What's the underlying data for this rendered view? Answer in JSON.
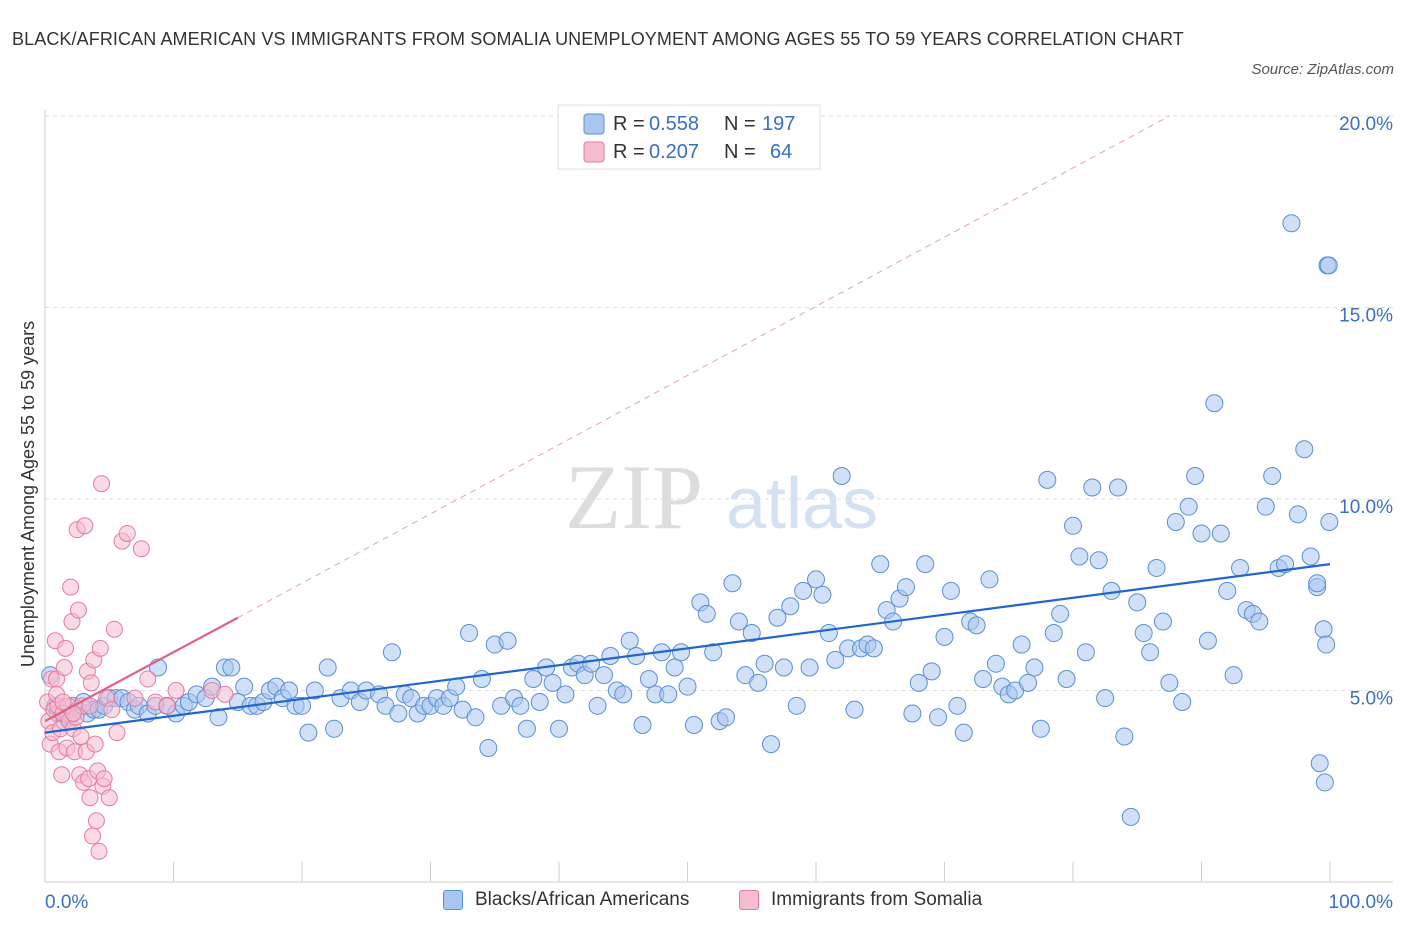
{
  "title": "BLACK/AFRICAN AMERICAN VS IMMIGRANTS FROM SOMALIA UNEMPLOYMENT AMONG AGES 55 TO 59 YEARS CORRELATION CHART",
  "source": "Source: ZipAtlas.com",
  "watermark": {
    "zip": "ZIP",
    "atlas": "atlas"
  },
  "colors": {
    "blue": "#5a8fd8",
    "blue_fill": "#a9c6ef",
    "blue_line": "#2266cc",
    "pink": "#e87aa0",
    "pink_fill": "#f6bcd0",
    "pink_line": "#e0608a",
    "axis_text": "#3a6fc4"
  },
  "legend_top": [
    {
      "r_label": "R = ",
      "r_value": "0.558",
      "n_label": "N = ",
      "n_value": "197"
    },
    {
      "r_label": "R = ",
      "r_value": "0.207",
      "n_label": "N = ",
      "n_value": "64"
    }
  ],
  "chart_data": {
    "type": "scatter",
    "title": "BLACK/AFRICAN AMERICAN VS IMMIGRANTS FROM SOMALIA UNEMPLOYMENT AMONG AGES 55 TO 59 YEARS CORRELATION CHART",
    "xlabel": "",
    "ylabel": "Unemployment Among Ages 55 to 59 years",
    "xlim": [
      0,
      100
    ],
    "ylim": [
      0,
      20.5
    ],
    "x_tick_labels": [
      "0.0%",
      "100.0%"
    ],
    "y_ticks": [
      5,
      10,
      15,
      20
    ],
    "y_tick_labels": [
      "5.0%",
      "10.0%",
      "15.0%",
      "20.0%"
    ],
    "grid": "horizontal dashed",
    "legend_position": "top-center and bottom",
    "series": [
      {
        "name": "Blacks/African Americans",
        "color": "#5a8fd8",
        "R": 0.558,
        "N": 197,
        "trend": {
          "x": [
            0,
            100
          ],
          "y": [
            3.9,
            8.3
          ]
        },
        "points": [
          [
            0.4,
            5.4
          ],
          [
            0.8,
            4.6
          ],
          [
            1.0,
            4.4
          ],
          [
            1.5,
            4.2
          ],
          [
            1.8,
            4.3
          ],
          [
            2.2,
            4.6
          ],
          [
            2.6,
            4.5
          ],
          [
            3.0,
            4.7
          ],
          [
            3.3,
            4.4
          ],
          [
            3.8,
            4.5
          ],
          [
            4.2,
            4.5
          ],
          [
            4.6,
            4.6
          ],
          [
            5.0,
            4.8
          ],
          [
            5.5,
            4.8
          ],
          [
            6.0,
            4.8
          ],
          [
            6.5,
            4.7
          ],
          [
            7.0,
            4.5
          ],
          [
            7.3,
            4.6
          ],
          [
            8.0,
            4.4
          ],
          [
            8.6,
            4.6
          ],
          [
            8.8,
            5.6
          ],
          [
            9.5,
            4.6
          ],
          [
            10.2,
            4.4
          ],
          [
            10.8,
            4.6
          ],
          [
            11.2,
            4.7
          ],
          [
            11.8,
            4.9
          ],
          [
            12.5,
            4.8
          ],
          [
            13.0,
            5.1
          ],
          [
            13.5,
            4.3
          ],
          [
            14.0,
            5.6
          ],
          [
            14.5,
            5.6
          ],
          [
            15.0,
            4.7
          ],
          [
            15.5,
            5.1
          ],
          [
            16.0,
            4.6
          ],
          [
            16.5,
            4.6
          ],
          [
            17.0,
            4.7
          ],
          [
            17.5,
            5.0
          ],
          [
            18.0,
            5.1
          ],
          [
            18.5,
            4.8
          ],
          [
            19.0,
            5.0
          ],
          [
            19.5,
            4.6
          ],
          [
            20.0,
            4.6
          ],
          [
            20.5,
            3.9
          ],
          [
            21.0,
            5.0
          ],
          [
            22.0,
            5.6
          ],
          [
            22.5,
            4.0
          ],
          [
            23.0,
            4.8
          ],
          [
            23.8,
            5.0
          ],
          [
            24.5,
            4.7
          ],
          [
            25.0,
            5.0
          ],
          [
            26.0,
            4.9
          ],
          [
            26.5,
            4.6
          ],
          [
            27.0,
            6.0
          ],
          [
            27.5,
            4.4
          ],
          [
            28.0,
            4.9
          ],
          [
            28.5,
            4.8
          ],
          [
            29.0,
            4.4
          ],
          [
            29.5,
            4.6
          ],
          [
            30.0,
            4.6
          ],
          [
            30.5,
            4.8
          ],
          [
            31.0,
            4.6
          ],
          [
            31.5,
            4.8
          ],
          [
            32.0,
            5.1
          ],
          [
            32.5,
            4.5
          ],
          [
            33.0,
            6.5
          ],
          [
            33.5,
            4.3
          ],
          [
            34.0,
            5.3
          ],
          [
            34.5,
            3.5
          ],
          [
            35.0,
            6.2
          ],
          [
            35.5,
            4.6
          ],
          [
            36.0,
            6.3
          ],
          [
            36.5,
            4.8
          ],
          [
            37.0,
            4.6
          ],
          [
            37.5,
            4.0
          ],
          [
            38.0,
            5.3
          ],
          [
            38.5,
            4.7
          ],
          [
            39.0,
            5.6
          ],
          [
            39.5,
            5.2
          ],
          [
            40.0,
            4.0
          ],
          [
            40.5,
            4.9
          ],
          [
            41.0,
            5.6
          ],
          [
            41.5,
            5.7
          ],
          [
            42.0,
            5.4
          ],
          [
            42.5,
            5.7
          ],
          [
            43.0,
            4.6
          ],
          [
            43.5,
            5.4
          ],
          [
            44.0,
            5.9
          ],
          [
            44.5,
            5.0
          ],
          [
            45.0,
            4.9
          ],
          [
            45.5,
            6.3
          ],
          [
            46.0,
            5.9
          ],
          [
            46.5,
            4.1
          ],
          [
            47.0,
            5.3
          ],
          [
            47.5,
            4.9
          ],
          [
            48.0,
            6.0
          ],
          [
            48.5,
            4.9
          ],
          [
            49.0,
            5.6
          ],
          [
            49.5,
            6.0
          ],
          [
            50.0,
            5.1
          ],
          [
            50.5,
            4.1
          ],
          [
            51.0,
            7.3
          ],
          [
            51.5,
            7.0
          ],
          [
            52.0,
            6.0
          ],
          [
            52.5,
            4.2
          ],
          [
            53.0,
            4.3
          ],
          [
            53.5,
            7.8
          ],
          [
            54.0,
            6.8
          ],
          [
            54.5,
            5.4
          ],
          [
            55.0,
            6.5
          ],
          [
            55.5,
            5.2
          ],
          [
            56.0,
            5.7
          ],
          [
            56.5,
            3.6
          ],
          [
            57.0,
            6.9
          ],
          [
            57.5,
            5.6
          ],
          [
            58.0,
            7.2
          ],
          [
            58.5,
            4.6
          ],
          [
            59.0,
            7.6
          ],
          [
            59.5,
            5.6
          ],
          [
            60.0,
            7.9
          ],
          [
            60.5,
            7.5
          ],
          [
            61.0,
            6.5
          ],
          [
            61.5,
            5.8
          ],
          [
            62.0,
            10.6
          ],
          [
            62.5,
            6.1
          ],
          [
            63.0,
            4.5
          ],
          [
            63.5,
            6.1
          ],
          [
            64.0,
            6.2
          ],
          [
            64.5,
            6.1
          ],
          [
            65.0,
            8.3
          ],
          [
            65.5,
            7.1
          ],
          [
            66.0,
            6.8
          ],
          [
            66.5,
            7.4
          ],
          [
            67.0,
            7.7
          ],
          [
            67.5,
            4.4
          ],
          [
            68.0,
            5.2
          ],
          [
            68.5,
            8.3
          ],
          [
            69.0,
            5.5
          ],
          [
            69.5,
            4.3
          ],
          [
            70.0,
            6.4
          ],
          [
            70.5,
            7.6
          ],
          [
            71.0,
            4.6
          ],
          [
            71.5,
            3.9
          ],
          [
            72.0,
            6.8
          ],
          [
            72.5,
            6.7
          ],
          [
            73.0,
            5.3
          ],
          [
            73.5,
            7.9
          ],
          [
            74.0,
            5.7
          ],
          [
            74.5,
            5.1
          ],
          [
            75.0,
            4.9
          ],
          [
            75.5,
            5.0
          ],
          [
            76.0,
            6.2
          ],
          [
            76.5,
            5.2
          ],
          [
            77.0,
            5.6
          ],
          [
            77.5,
            4.0
          ],
          [
            78.0,
            10.5
          ],
          [
            78.5,
            6.5
          ],
          [
            79.0,
            7.0
          ],
          [
            79.5,
            5.3
          ],
          [
            80.0,
            9.3
          ],
          [
            80.5,
            8.5
          ],
          [
            81.0,
            6.0
          ],
          [
            81.5,
            10.3
          ],
          [
            82.0,
            8.4
          ],
          [
            82.5,
            4.8
          ],
          [
            83.0,
            7.6
          ],
          [
            83.5,
            10.3
          ],
          [
            84.0,
            3.8
          ],
          [
            84.5,
            1.7
          ],
          [
            85.0,
            7.3
          ],
          [
            85.5,
            6.5
          ],
          [
            86.0,
            6.0
          ],
          [
            86.5,
            8.2
          ],
          [
            87.0,
            6.8
          ],
          [
            87.5,
            5.2
          ],
          [
            88.0,
            9.4
          ],
          [
            88.5,
            4.7
          ],
          [
            89.0,
            9.8
          ],
          [
            89.5,
            10.6
          ],
          [
            90.0,
            9.1
          ],
          [
            90.5,
            6.3
          ],
          [
            91.0,
            12.5
          ],
          [
            91.5,
            9.1
          ],
          [
            92.0,
            7.6
          ],
          [
            92.5,
            5.4
          ],
          [
            93.0,
            8.2
          ],
          [
            93.5,
            7.1
          ],
          [
            94.0,
            7.0
          ],
          [
            94.5,
            6.8
          ],
          [
            95.0,
            9.8
          ],
          [
            95.5,
            10.6
          ],
          [
            96.0,
            8.2
          ],
          [
            96.5,
            8.3
          ],
          [
            97.0,
            17.2
          ],
          [
            97.5,
            9.6
          ],
          [
            98.0,
            11.3
          ],
          [
            98.5,
            8.5
          ],
          [
            99.0,
            7.7
          ],
          [
            99.5,
            6.6
          ],
          [
            99.7,
            6.2
          ],
          [
            99.8,
            16.1
          ],
          [
            99.9,
            16.1
          ],
          [
            99.95,
            9.4
          ],
          [
            99.0,
            7.8
          ],
          [
            99.2,
            3.1
          ],
          [
            99.6,
            2.6
          ]
        ]
      },
      {
        "name": "Immigrants from Somalia",
        "color": "#e87aa0",
        "R": 0.207,
        "N": 64,
        "trend": {
          "x": [
            0,
            15
          ],
          "y": [
            4.2,
            6.9
          ]
        },
        "points": [
          [
            0.2,
            4.7
          ],
          [
            0.3,
            4.2
          ],
          [
            0.4,
            3.6
          ],
          [
            0.5,
            5.3
          ],
          [
            0.6,
            3.9
          ],
          [
            0.7,
            4.5
          ],
          [
            0.8,
            6.3
          ],
          [
            0.9,
            5.3
          ],
          [
            1.0,
            4.6
          ],
          [
            1.1,
            3.4
          ],
          [
            1.2,
            4.0
          ],
          [
            1.3,
            2.8
          ],
          [
            1.4,
            4.4
          ],
          [
            1.5,
            5.6
          ],
          [
            1.6,
            6.1
          ],
          [
            1.7,
            3.5
          ],
          [
            1.8,
            4.6
          ],
          [
            1.9,
            4.2
          ],
          [
            2.0,
            7.7
          ],
          [
            2.1,
            6.8
          ],
          [
            2.2,
            4.0
          ],
          [
            2.3,
            3.4
          ],
          [
            2.4,
            4.3
          ],
          [
            2.5,
            9.2
          ],
          [
            2.6,
            7.1
          ],
          [
            2.7,
            2.8
          ],
          [
            2.8,
            3.8
          ],
          [
            2.9,
            4.6
          ],
          [
            3.0,
            2.6
          ],
          [
            3.1,
            9.3
          ],
          [
            3.2,
            3.4
          ],
          [
            3.3,
            5.5
          ],
          [
            3.4,
            2.7
          ],
          [
            3.5,
            2.2
          ],
          [
            3.6,
            5.2
          ],
          [
            3.7,
            1.2
          ],
          [
            3.8,
            5.8
          ],
          [
            3.9,
            3.6
          ],
          [
            4.0,
            1.6
          ],
          [
            4.1,
            2.9
          ],
          [
            4.2,
            0.8
          ],
          [
            4.3,
            6.1
          ],
          [
            4.4,
            10.4
          ],
          [
            4.5,
            2.5
          ],
          [
            4.6,
            2.7
          ],
          [
            4.8,
            4.8
          ],
          [
            5.0,
            2.2
          ],
          [
            5.2,
            4.5
          ],
          [
            5.4,
            6.6
          ],
          [
            5.6,
            3.9
          ],
          [
            6.0,
            8.9
          ],
          [
            6.4,
            9.1
          ],
          [
            7.0,
            4.8
          ],
          [
            7.5,
            8.7
          ],
          [
            8.0,
            5.3
          ],
          [
            8.6,
            4.7
          ],
          [
            9.5,
            4.6
          ],
          [
            10.2,
            5.0
          ],
          [
            13.0,
            5.0
          ],
          [
            14.0,
            4.9
          ],
          [
            0.9,
            4.9
          ],
          [
            1.4,
            4.7
          ],
          [
            2.2,
            4.4
          ],
          [
            3.5,
            4.6
          ]
        ]
      }
    ]
  },
  "legend_bottom": [
    "Blacks/African Americans",
    "Immigrants from Somalia"
  ]
}
